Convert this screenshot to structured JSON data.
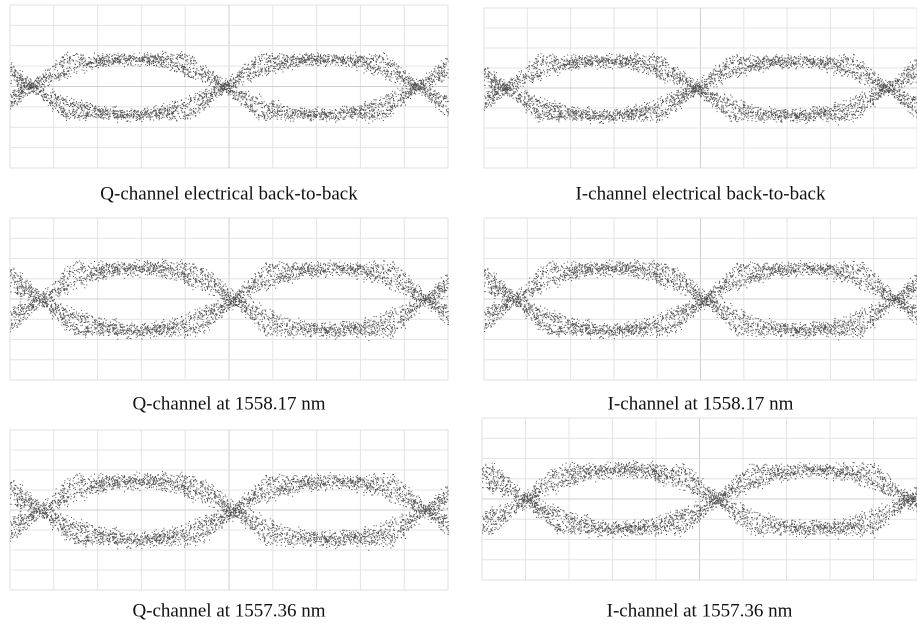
{
  "panels": [
    {
      "caption": "Q-channel electrical back-to-back"
    },
    {
      "caption": "I-channel electrical back-to-back"
    },
    {
      "caption": "Q-channel at 1558.17 nm"
    },
    {
      "caption": "I-channel at 1558.17 nm"
    },
    {
      "caption": "Q-channel at 1557.36 nm"
    },
    {
      "caption": "I-channel at 1557.36 nm"
    }
  ]
}
